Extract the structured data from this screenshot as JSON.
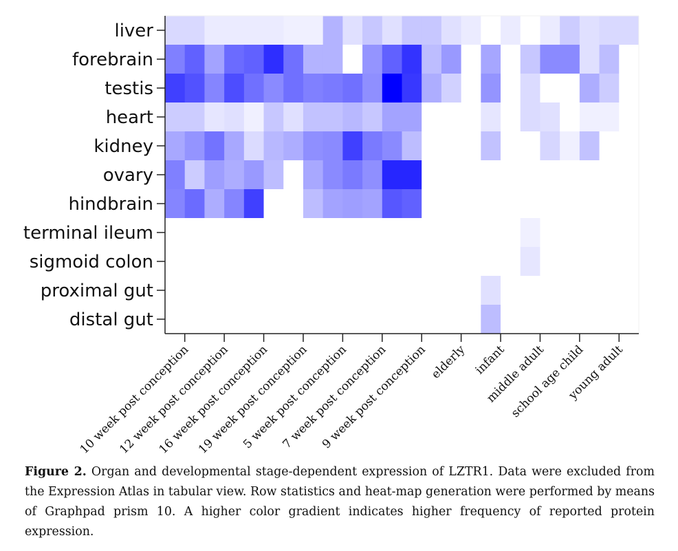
{
  "chart_data": {
    "type": "heatmap",
    "rows": [
      "liver",
      "forebrain",
      "testis",
      "heart",
      "kidney",
      "ovary",
      "hindbrain",
      "terminal ileum",
      "sigmoid colon",
      "proximal gut",
      "distal gut"
    ],
    "columns": [
      "10 week post conception",
      "12 week post conception",
      "16 week post conception",
      "19 week post conception",
      "5 week post conception",
      "7 week post conception",
      "9 week post conception",
      "elderly",
      "infant",
      "middle adult",
      "school age child",
      "young adult"
    ],
    "color_scale": {
      "low": "#ffffff",
      "high": "#0000ff",
      "min": 0,
      "max": 1
    },
    "subcolumns_per_column": 2,
    "values": [
      [
        0.15,
        0.15,
        0.08,
        0.08,
        0.08,
        0.08,
        0.06,
        0.06,
        0.3,
        0.12,
        0.22,
        0.12,
        0.22,
        0.22,
        0.12,
        0.08,
        0.0,
        0.08,
        0.0,
        0.08,
        0.2,
        0.12,
        0.15,
        0.15
      ],
      [
        0.5,
        0.62,
        0.36,
        0.58,
        0.62,
        0.82,
        0.56,
        0.3,
        0.3,
        0.0,
        0.42,
        0.62,
        0.8,
        0.26,
        0.4,
        0.0,
        0.35,
        0.0,
        0.22,
        0.46,
        0.46,
        0.12,
        0.26,
        0.0
      ],
      [
        0.75,
        0.68,
        0.48,
        0.7,
        0.56,
        0.46,
        0.56,
        0.5,
        0.52,
        0.56,
        0.44,
        1.0,
        0.78,
        0.32,
        0.18,
        0.0,
        0.42,
        0.0,
        0.14,
        0.0,
        0.0,
        0.32,
        0.2,
        0.0
      ],
      [
        0.2,
        0.2,
        0.1,
        0.12,
        0.06,
        0.22,
        0.12,
        0.24,
        0.24,
        0.28,
        0.22,
        0.36,
        0.36,
        0.0,
        0.0,
        0.0,
        0.1,
        0.0,
        0.14,
        0.12,
        0.0,
        0.06,
        0.06,
        0.0
      ],
      [
        0.34,
        0.42,
        0.55,
        0.34,
        0.14,
        0.28,
        0.32,
        0.44,
        0.46,
        0.75,
        0.52,
        0.46,
        0.26,
        0.0,
        0.0,
        0.0,
        0.24,
        0.0,
        0.0,
        0.16,
        0.06,
        0.24,
        0.0,
        0.0
      ],
      [
        0.5,
        0.2,
        0.38,
        0.32,
        0.4,
        0.26,
        0.0,
        0.34,
        0.46,
        0.52,
        0.44,
        0.85,
        0.85,
        0.0,
        0.0,
        0.0,
        0.0,
        0.0,
        0.0,
        0.0,
        0.0,
        0.0,
        0.0,
        0.0
      ],
      [
        0.48,
        0.58,
        0.32,
        0.48,
        0.75,
        0.0,
        0.0,
        0.26,
        0.36,
        0.38,
        0.36,
        0.66,
        0.62,
        0.0,
        0.0,
        0.0,
        0.0,
        0.0,
        0.0,
        0.0,
        0.0,
        0.0,
        0.0,
        0.0
      ],
      [
        0,
        0,
        0,
        0,
        0,
        0,
        0,
        0,
        0,
        0,
        0,
        0,
        0,
        0,
        0,
        0,
        0,
        0,
        0.06,
        0,
        0,
        0,
        0,
        0
      ],
      [
        0,
        0,
        0,
        0,
        0,
        0,
        0,
        0,
        0,
        0,
        0,
        0,
        0,
        0,
        0,
        0,
        0,
        0,
        0.1,
        0,
        0,
        0,
        0,
        0
      ],
      [
        0,
        0,
        0,
        0,
        0,
        0,
        0,
        0,
        0,
        0,
        0,
        0,
        0,
        0,
        0,
        0,
        0.12,
        0,
        0,
        0,
        0,
        0,
        0,
        0
      ],
      [
        0,
        0,
        0,
        0,
        0,
        0,
        0,
        0,
        0,
        0,
        0,
        0,
        0,
        0,
        0,
        0,
        0.26,
        0,
        0,
        0,
        0,
        0,
        0,
        0
      ]
    ]
  },
  "caption": {
    "label": "Figure 2.",
    "text": "Organ and developmental stage-dependent expression of LZTR1. Data were excluded from the Expression Atlas in tabular view. Row statistics and heat-map generation were performed by means of Graphpad prism 10. A higher color gradient indicates higher frequency of reported protein expression."
  }
}
